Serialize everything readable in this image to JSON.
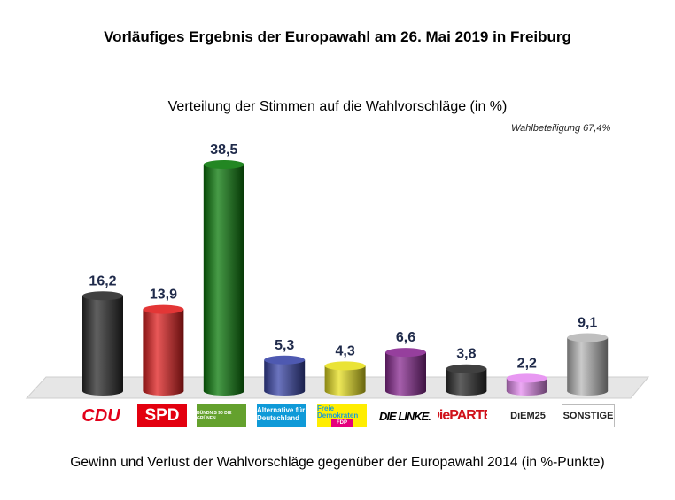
{
  "chart_data": {
    "type": "bar",
    "title": "Vorläufiges Ergebnis der Europawahl am 26. Mai 2019 in Freiburg",
    "subtitle": "Verteilung der Stimmen auf die Wahlvorschläge (in %)",
    "annotation": "Wahlbeteiligung 67,4%",
    "footer": "Gewinn und Verlust der Wahlvorschläge gegenüber der Europawahl 2014 (in %-Punkte)",
    "categories": [
      "CDU",
      "SPD",
      "GRÜNE",
      "AfD",
      "FDP",
      "DIE LINKE.",
      "Die PARTEI",
      "DiEM25",
      "SONSTIGE"
    ],
    "values": [
      16.2,
      13.9,
      38.5,
      5.3,
      4.3,
      6.6,
      3.8,
      2.2,
      9.1
    ],
    "labels": [
      "16,2",
      "13,9",
      "38,5",
      "5,3",
      "4,3",
      "6,6",
      "3,8",
      "2,2",
      "9,1"
    ],
    "colors": [
      "#2b2b2b",
      "#e02020",
      "#0a7a0a",
      "#3a46a8",
      "#e8e020",
      "#8a2a92",
      "#2b2b2b",
      "#e58cf0",
      "#b8b8b8"
    ],
    "ylim": [
      0,
      40
    ],
    "grid": false
  },
  "logos": {
    "cdu": "CDU",
    "spd": "SPD",
    "gruene": "BÜNDNIS 90 DIE GRÜNEN",
    "afd": "Alternative für Deutschland",
    "fdp_top": "Freie Demokraten",
    "fdp_bottom": "FDP",
    "linke": "DIE LINKE.",
    "partei": "DiePARTEI",
    "diem": "DiEM25",
    "sonstige": "SONSTIGE"
  }
}
